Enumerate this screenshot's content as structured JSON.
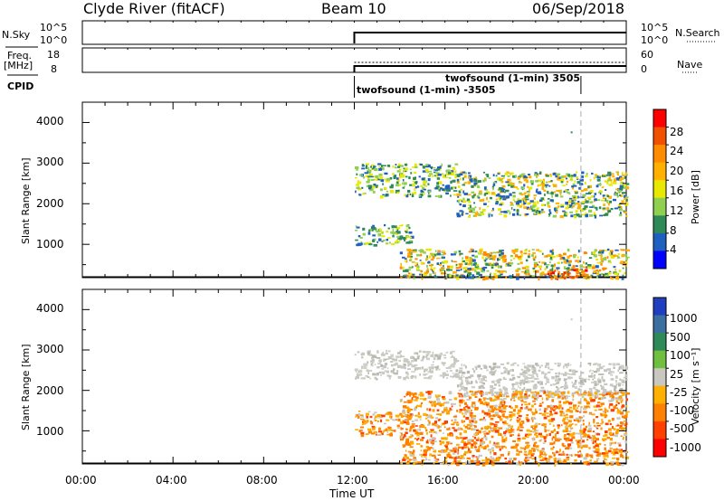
{
  "header": {
    "station": "Clyde River (fitACF)",
    "beam": "Beam 10",
    "date": "06/Sep/2018"
  },
  "top_panels": {
    "nsky_label": "N.Sky",
    "nsearch_label": "N.Search",
    "nsky_ticks": [
      "10^5",
      "10^0"
    ],
    "nsearch_ticks": [
      "10^5",
      "10^0"
    ],
    "freq_label": "Freq.",
    "freq_unit": "[MHz]",
    "freq_ticks": [
      "18",
      "8"
    ],
    "nave_label": "Nave",
    "nave_ticks": [
      "60",
      "0"
    ],
    "cpid_label": "CPID",
    "cpid_entries": [
      "twofsound (1-min) 3505",
      "twofsound (1-min) -3505"
    ]
  },
  "chart_data": [
    {
      "type": "heatmap",
      "name": "power-panel",
      "ylabel": "Slant Range [km]",
      "yticks": [
        "4000",
        "3000",
        "2000",
        "1000"
      ],
      "ylim": [
        180,
        4500
      ],
      "xlim_hours": [
        0,
        24
      ],
      "colorbar": {
        "label": "Power [dB]",
        "tick_labels": [
          "28",
          "24",
          "20",
          "16",
          "12",
          "8",
          "4"
        ],
        "colors": [
          "#ff0000",
          "#f05000",
          "#ff8c00",
          "#ffb000",
          "#e8e800",
          "#90d050",
          "#2e8b57",
          "#1f5fbf",
          "#0000ff"
        ]
      },
      "data_start_hour": 12.0,
      "reference_line_hour": 22.0,
      "echo_bands": [
        {
          "t0": 12.0,
          "t1": 16.5,
          "r0": 2200,
          "r1": 3000,
          "level": "low"
        },
        {
          "t0": 16.5,
          "t1": 24.0,
          "r0": 1700,
          "r1": 2800,
          "level": "low-mid"
        },
        {
          "t0": 12.0,
          "t1": 14.5,
          "r0": 1000,
          "r1": 1500,
          "level": "mid"
        },
        {
          "t0": 14.0,
          "t1": 24.0,
          "r0": 180,
          "r1": 900,
          "level": "mid-high"
        },
        {
          "t0": 20.5,
          "t1": 22.2,
          "r0": 180,
          "r1": 400,
          "level": "high"
        }
      ]
    },
    {
      "type": "heatmap",
      "name": "velocity-panel",
      "ylabel": "Slant Range [km]",
      "yticks": [
        "4000",
        "3000",
        "2000",
        "1000"
      ],
      "ylim": [
        180,
        4500
      ],
      "xlim_hours": [
        0,
        24
      ],
      "xticks": [
        "00:00",
        "04:00",
        "08:00",
        "12:00",
        "16:00",
        "20:00",
        "00:00"
      ],
      "xlabel": "Time UT",
      "colorbar": {
        "label": "Velocity [m s⁻¹]",
        "tick_labels": [
          "1000",
          "500",
          "100",
          "25",
          "-25",
          "-100",
          "-500",
          "-1000"
        ],
        "colors": [
          "#1f3fbf",
          "#3a6fa0",
          "#2e8b57",
          "#70c040",
          "#c8c8c0",
          "#ffb000",
          "#ff8000",
          "#ff4000",
          "#ff0000"
        ]
      },
      "data_start_hour": 12.0,
      "reference_line_hour": 22.0,
      "echo_bands": [
        {
          "t0": 12.0,
          "t1": 16.5,
          "r0": 2300,
          "r1": 3000,
          "level": "ground"
        },
        {
          "t0": 16.5,
          "t1": 24.0,
          "r0": 1800,
          "r1": 2700,
          "level": "ground"
        },
        {
          "t0": 12.0,
          "t1": 14.5,
          "r0": 900,
          "r1": 1500,
          "level": "negative"
        },
        {
          "t0": 14.0,
          "t1": 24.0,
          "r0": 180,
          "r1": 2000,
          "level": "negative"
        }
      ]
    }
  ],
  "colors": {
    "axis": "#000000",
    "gray_line": "#aaaaaa"
  }
}
